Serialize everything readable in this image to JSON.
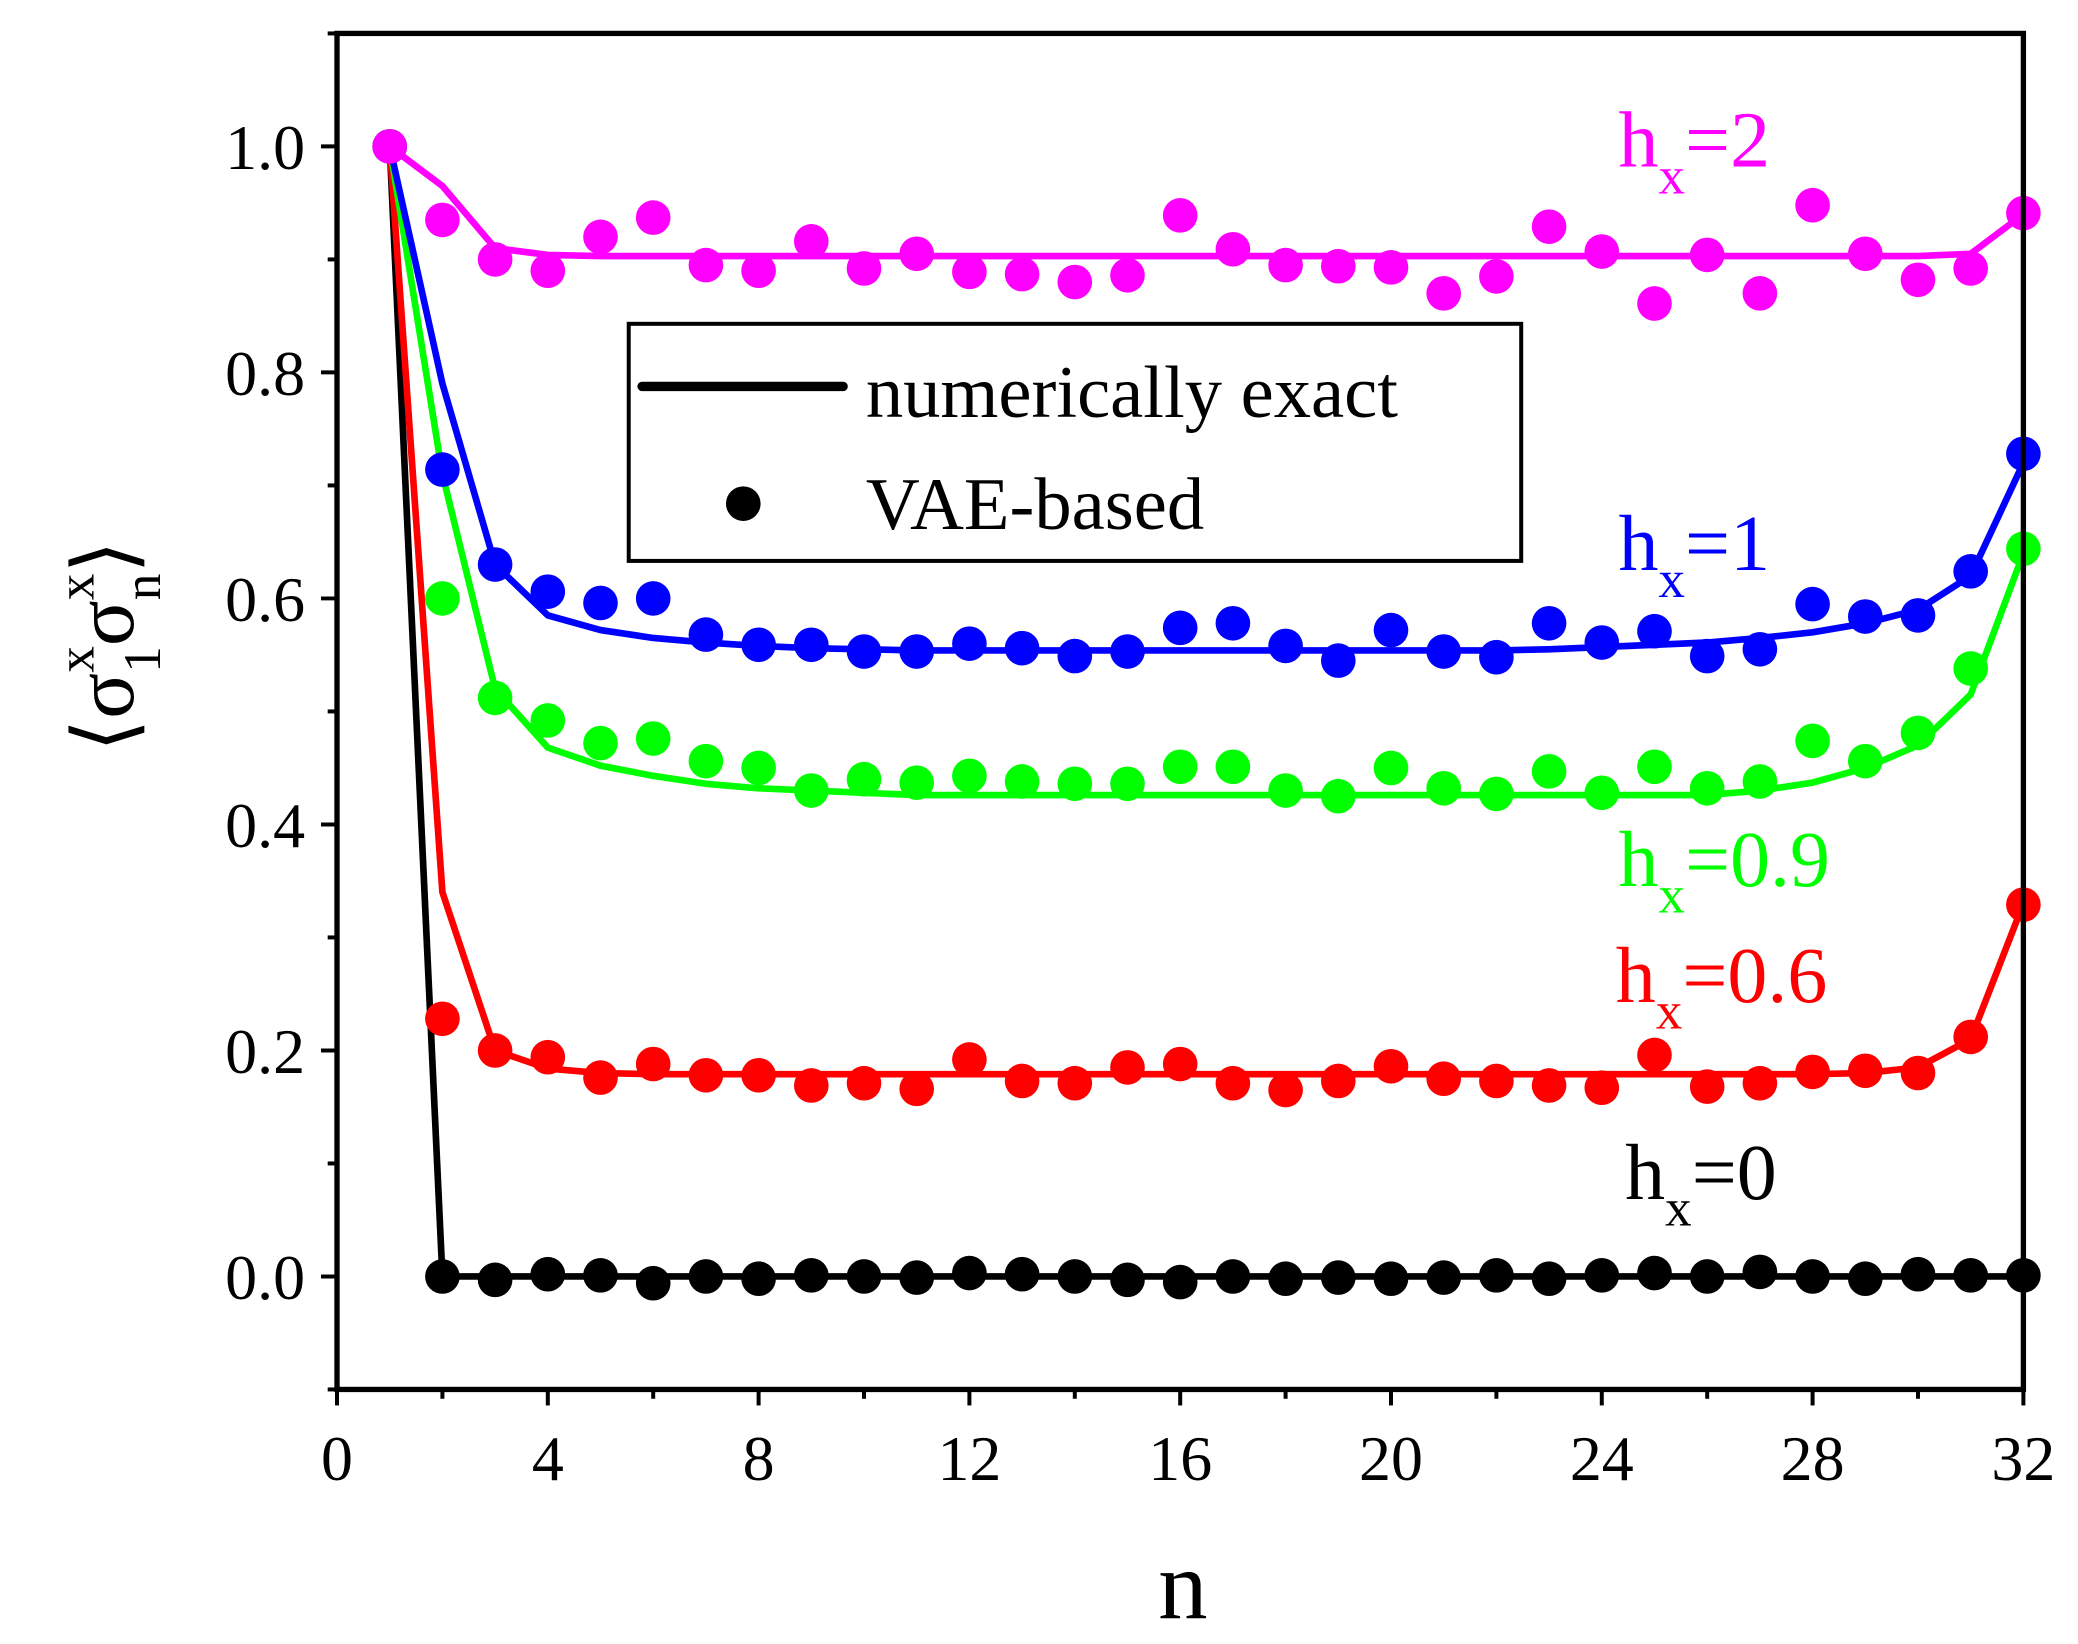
{
  "chart_data": {
    "type": "line",
    "xlabel": "n",
    "ylabel": {
      "open": "⟨",
      "s1": "σ",
      "s1_sup": "x",
      "s1_sub": "1",
      "s2": "σ",
      "s2_sup": "x",
      "s2_sub": "n",
      "close": "⟩"
    },
    "xlim": [
      0,
      32
    ],
    "ylim": [
      -0.1,
      1.1
    ],
    "x_ticks": [
      "0",
      "4",
      "8",
      "12",
      "16",
      "20",
      "24",
      "28",
      "32"
    ],
    "x_tick_values": [
      0,
      4,
      8,
      12,
      16,
      20,
      24,
      28,
      32
    ],
    "x_minor_step": 2,
    "y_ticks": [
      "0.0",
      "0.2",
      "0.4",
      "0.6",
      "0.8",
      "1.0"
    ],
    "y_tick_values": [
      0,
      0.2,
      0.4,
      0.6,
      0.8,
      1.0
    ],
    "y_minor_step": 0.1,
    "grid": false,
    "legend": {
      "placement": "top-center",
      "entries": [
        {
          "label": "numerically exact",
          "marker": "line"
        },
        {
          "label": "VAE-based",
          "marker": "dot"
        }
      ]
    },
    "x": [
      1,
      2,
      3,
      4,
      5,
      6,
      7,
      8,
      9,
      10,
      11,
      12,
      13,
      14,
      15,
      16,
      17,
      18,
      19,
      20,
      21,
      22,
      23,
      24,
      25,
      26,
      27,
      28,
      29,
      30,
      31,
      32
    ],
    "series": [
      {
        "annotation": {
          "main": "h",
          "sub": "x",
          "value": "=2"
        },
        "color": "#ff00ff",
        "exact": [
          1.0,
          0.965,
          0.91,
          0.904,
          0.903,
          0.903,
          0.903,
          0.903,
          0.903,
          0.903,
          0.903,
          0.903,
          0.903,
          0.903,
          0.903,
          0.903,
          0.903,
          0.903,
          0.903,
          0.903,
          0.903,
          0.903,
          0.903,
          0.903,
          0.903,
          0.903,
          0.903,
          0.903,
          0.903,
          0.903,
          0.905,
          0.94
        ],
        "vae": [
          1.0,
          0.935,
          0.9,
          0.89,
          0.92,
          0.937,
          0.895,
          0.89,
          0.916,
          0.892,
          0.905,
          0.889,
          0.887,
          0.88,
          0.886,
          0.939,
          0.909,
          0.895,
          0.894,
          0.893,
          0.87,
          0.885,
          0.929,
          0.907,
          0.861,
          0.904,
          0.87,
          0.948,
          0.905,
          0.882,
          0.892,
          0.941
        ]
      },
      {
        "annotation": {
          "main": "h",
          "sub": "x",
          "value": "=1"
        },
        "color": "#0000ff",
        "exact": [
          1.0,
          0.79,
          0.63,
          0.585,
          0.572,
          0.565,
          0.561,
          0.558,
          0.556,
          0.555,
          0.554,
          0.554,
          0.554,
          0.554,
          0.554,
          0.554,
          0.554,
          0.554,
          0.554,
          0.554,
          0.554,
          0.554,
          0.555,
          0.557,
          0.559,
          0.561,
          0.565,
          0.57,
          0.578,
          0.59,
          0.62,
          0.72
        ],
        "vae": [
          1.0,
          0.714,
          0.63,
          0.606,
          0.596,
          0.6,
          0.568,
          0.559,
          0.559,
          0.553,
          0.553,
          0.56,
          0.556,
          0.549,
          0.553,
          0.574,
          0.578,
          0.558,
          0.545,
          0.572,
          0.553,
          0.548,
          0.578,
          0.561,
          0.571,
          0.549,
          0.555,
          0.595,
          0.584,
          0.585,
          0.624,
          0.728
        ]
      },
      {
        "annotation": {
          "main": "h",
          "sub": "x",
          "value": "=0.9"
        },
        "color": "#00ff00",
        "exact": [
          1.0,
          0.71,
          0.52,
          0.468,
          0.452,
          0.443,
          0.436,
          0.432,
          0.43,
          0.428,
          0.426,
          0.426,
          0.426,
          0.426,
          0.426,
          0.426,
          0.426,
          0.426,
          0.426,
          0.426,
          0.426,
          0.426,
          0.426,
          0.426,
          0.426,
          0.426,
          0.43,
          0.437,
          0.45,
          0.47,
          0.515,
          0.64
        ],
        "vae": [
          1.0,
          0.6,
          0.512,
          0.492,
          0.472,
          0.476,
          0.456,
          0.45,
          0.43,
          0.44,
          0.437,
          0.443,
          0.438,
          0.436,
          0.436,
          0.451,
          0.451,
          0.43,
          0.425,
          0.45,
          0.432,
          0.427,
          0.447,
          0.428,
          0.451,
          0.432,
          0.438,
          0.474,
          0.456,
          0.481,
          0.538,
          0.644
        ]
      },
      {
        "annotation": {
          "main": "h",
          "sub": "x",
          "value": "=0.6"
        },
        "color": "#ff0000",
        "exact": [
          1.0,
          0.34,
          0.2,
          0.184,
          0.18,
          0.179,
          0.179,
          0.179,
          0.179,
          0.179,
          0.179,
          0.179,
          0.179,
          0.179,
          0.179,
          0.179,
          0.179,
          0.179,
          0.179,
          0.179,
          0.179,
          0.179,
          0.179,
          0.179,
          0.179,
          0.179,
          0.179,
          0.179,
          0.18,
          0.185,
          0.21,
          0.33
        ],
        "vae": [
          1.0,
          0.228,
          0.2,
          0.194,
          0.176,
          0.188,
          0.178,
          0.178,
          0.169,
          0.171,
          0.166,
          0.192,
          0.173,
          0.171,
          0.185,
          0.188,
          0.171,
          0.165,
          0.173,
          0.186,
          0.175,
          0.173,
          0.169,
          0.167,
          0.196,
          0.168,
          0.171,
          0.181,
          0.182,
          0.18,
          0.212,
          0.329
        ]
      },
      {
        "annotation": {
          "main": "h",
          "sub": "x",
          "value": "=0"
        },
        "color": "#000000",
        "exact": [
          1.0,
          0,
          0,
          0,
          0,
          0,
          0,
          0,
          0,
          0,
          0,
          0,
          0,
          0,
          0,
          0,
          0,
          0,
          0,
          0,
          0,
          0,
          0,
          0,
          0,
          0,
          0,
          0,
          0,
          0,
          0,
          0
        ],
        "vae": [
          1.0,
          0,
          -0.003,
          0.002,
          0.001,
          -0.006,
          0,
          -0.002,
          0.001,
          0,
          -0.001,
          0.003,
          0.002,
          0,
          -0.003,
          -0.005,
          0,
          -0.002,
          -0.001,
          -0.002,
          -0.001,
          0.001,
          -0.002,
          0.001,
          0.003,
          0,
          0.004,
          0,
          -0.002,
          0.002,
          0.001,
          0.001
        ]
      }
    ]
  }
}
